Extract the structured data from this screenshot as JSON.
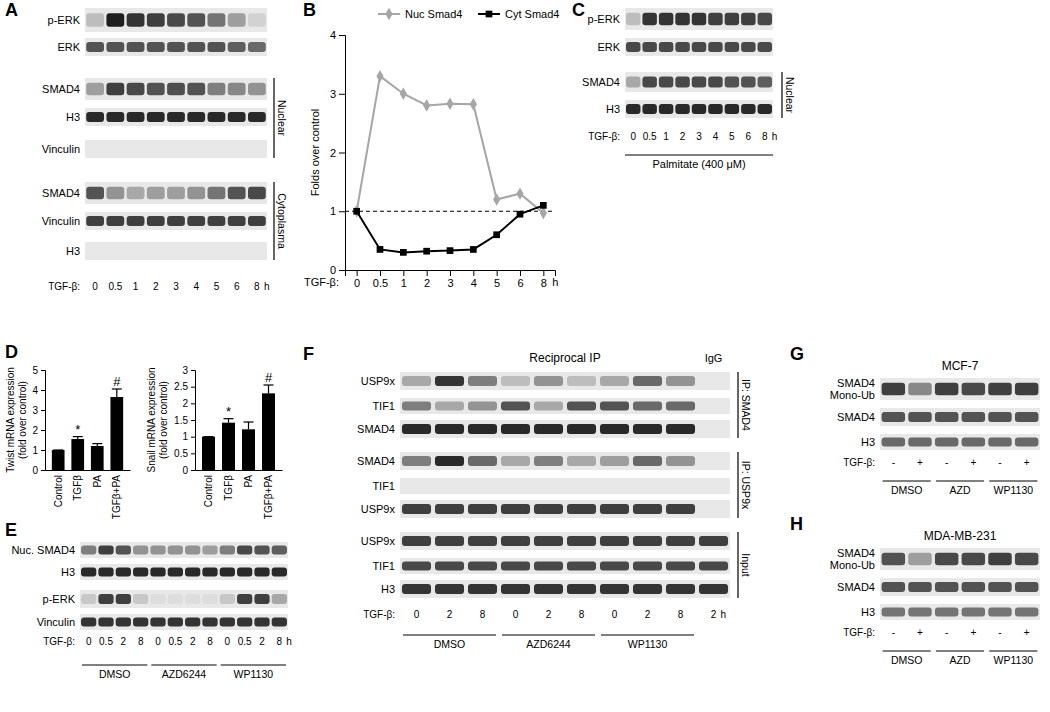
{
  "chart_data": [
    {
      "type": "line",
      "panel": "B",
      "ylabel": "Folds over control",
      "xlabel": "TGF-β:",
      "x_unit": "h",
      "categories": [
        "0",
        "0.5",
        "1",
        "2",
        "3",
        "4",
        "5",
        "6",
        "8"
      ],
      "series": [
        {
          "name": "Nuc Smad4",
          "color": "#a6a6a6",
          "marker": "diamond",
          "values": [
            1,
            3.3,
            3.0,
            2.8,
            2.83,
            2.82,
            1.2,
            1.3,
            0.97
          ]
        },
        {
          "name": "Cyt Smad4",
          "color": "#000000",
          "marker": "square",
          "values": [
            1,
            0.35,
            0.3,
            0.32,
            0.33,
            0.35,
            0.6,
            0.95,
            1.1
          ]
        }
      ],
      "reference_line": 1,
      "ylim": [
        0,
        4
      ],
      "yticks": [
        0,
        1,
        2,
        3,
        4
      ],
      "legend": "top"
    },
    {
      "type": "bar",
      "panel": "D",
      "ylabel": [
        "Twist mRNA expression",
        "(fold over control)"
      ],
      "categories": [
        "Control",
        "TGFβ",
        "PA",
        "TGFβ+PA"
      ],
      "values": [
        1,
        1.55,
        1.2,
        3.65
      ],
      "errors": [
        0,
        0.12,
        0.12,
        0.4
      ],
      "color": "#000000",
      "ylim": [
        0,
        5
      ],
      "yticks": [
        0,
        1,
        2,
        3,
        4,
        5
      ],
      "annotations": [
        {
          "category": "TGFβ",
          "text": "*"
        },
        {
          "category": "TGFβ+PA",
          "text": "#"
        }
      ]
    },
    {
      "type": "bar",
      "ylabel": [
        "Snail mRNA expression",
        "(fold over control)"
      ],
      "categories": [
        "Control",
        "TGFβ",
        "PA",
        "TGFβ+PA"
      ],
      "values": [
        1,
        1.42,
        1.22,
        2.3
      ],
      "errors": [
        0,
        0.12,
        0.22,
        0.25
      ],
      "color": "#000000",
      "ylim": [
        0,
        3
      ],
      "yticks": [
        0,
        0.5,
        1,
        1.5,
        2,
        2.5,
        3
      ],
      "annotations": [
        {
          "category": "TGFβ",
          "text": "*"
        },
        {
          "category": "TGFβ+PA",
          "text": "#"
        }
      ]
    }
  ],
  "blots": [
    {
      "panel": "A",
      "lane_prefix": "TGF-β:",
      "lanes": [
        "0",
        "0.5",
        "1",
        "2",
        "3",
        "4",
        "5",
        "6",
        "8"
      ],
      "lane_unit": "h",
      "rows": [
        {
          "name": "p-ERK",
          "bands": [
            0.2,
            0.95,
            0.85,
            0.8,
            0.75,
            0.7,
            0.55,
            0.35,
            0.1
          ]
        },
        {
          "name": "ERK",
          "bands": [
            0.7,
            0.7,
            0.7,
            0.7,
            0.7,
            0.7,
            0.7,
            0.65,
            0.6
          ]
        },
        {
          "name": "SMAD4",
          "bands": [
            0.35,
            0.8,
            0.75,
            0.7,
            0.72,
            0.7,
            0.5,
            0.45,
            0.4
          ]
        },
        {
          "name": "H3",
          "bands": [
            0.9,
            0.9,
            0.9,
            0.9,
            0.9,
            0.9,
            0.9,
            0.9,
            0.9
          ]
        },
        {
          "name": "Vinculin",
          "bands": [
            0,
            0,
            0,
            0,
            0,
            0,
            0,
            0,
            0
          ]
        },
        {
          "name": "SMAD4",
          "bands": [
            0.7,
            0.4,
            0.3,
            0.35,
            0.35,
            0.4,
            0.55,
            0.7,
            0.75
          ]
        },
        {
          "name": "Vinculin",
          "bands": [
            0.8,
            0.8,
            0.8,
            0.8,
            0.8,
            0.8,
            0.8,
            0.8,
            0.8
          ]
        },
        {
          "name": "H3",
          "bands": [
            0,
            0,
            0,
            0,
            0,
            0,
            0,
            0,
            0
          ]
        }
      ],
      "fractions": [
        {
          "name": "Nuclear",
          "from": 2,
          "to": 4
        },
        {
          "name": "Cytoplasma",
          "from": 5,
          "to": 7
        }
      ]
    },
    {
      "panel": "C",
      "lane_prefix": "TGF-β:",
      "lanes": [
        "0",
        "0.5",
        "1",
        "2",
        "3",
        "4",
        "5",
        "6",
        "8"
      ],
      "lane_unit": "h",
      "treatment": "Palmitate (400 μM)",
      "rows": [
        {
          "name": "p-ERK",
          "bands": [
            0.2,
            0.85,
            0.85,
            0.85,
            0.85,
            0.8,
            0.8,
            0.8,
            0.75
          ]
        },
        {
          "name": "ERK",
          "bands": [
            0.75,
            0.75,
            0.75,
            0.75,
            0.75,
            0.75,
            0.75,
            0.75,
            0.75
          ]
        },
        {
          "name": "SMAD4",
          "bands": [
            0.3,
            0.75,
            0.75,
            0.75,
            0.75,
            0.75,
            0.7,
            0.7,
            0.65
          ]
        },
        {
          "name": "H3",
          "bands": [
            0.9,
            0.9,
            0.9,
            0.9,
            0.9,
            0.9,
            0.9,
            0.9,
            0.9
          ]
        }
      ],
      "fractions": [
        {
          "name": "Nuclear",
          "from": 2,
          "to": 3
        }
      ]
    },
    {
      "panel": "E",
      "lane_prefix": "TGF-β:",
      "lanes": [
        "0",
        "0.5",
        "2",
        "8",
        "0",
        "0.5",
        "2",
        "8",
        "0",
        "0.5",
        "2",
        "8"
      ],
      "lane_unit": "h",
      "groups": [
        {
          "name": "DMSO",
          "lanes": 4
        },
        {
          "name": "AZD6244",
          "lanes": 4
        },
        {
          "name": "WP1130",
          "lanes": 4
        }
      ],
      "rows": [
        {
          "name": "Nuc. SMAD4",
          "bands": [
            0.5,
            0.8,
            0.7,
            0.4,
            0.4,
            0.4,
            0.4,
            0.35,
            0.5,
            0.75,
            0.7,
            0.65
          ]
        },
        {
          "name": "H3",
          "bands": [
            0.9,
            0.9,
            0.9,
            0.9,
            0.9,
            0.9,
            0.9,
            0.9,
            0.9,
            0.9,
            0.9,
            0.9
          ]
        },
        {
          "name": "p-ERK",
          "bands": [
            0.15,
            0.8,
            0.8,
            0.15,
            0.05,
            0.05,
            0.05,
            0.05,
            0.15,
            0.8,
            0.8,
            0.3
          ]
        },
        {
          "name": "Vinculin",
          "bands": [
            0.85,
            0.85,
            0.85,
            0.85,
            0.85,
            0.85,
            0.85,
            0.85,
            0.85,
            0.85,
            0.85,
            0.85
          ]
        }
      ]
    },
    {
      "panel": "F",
      "title": "Reciprocal IP",
      "corner_label": "IgG",
      "lane_prefix": "TGF-β:",
      "lanes": [
        "0",
        "2",
        "8",
        "0",
        "2",
        "8",
        "0",
        "2",
        "8",
        "2"
      ],
      "lane_unit": "h",
      "groups": [
        {
          "name": "DMSO",
          "lanes": 3
        },
        {
          "name": "AZD6244",
          "lanes": 3
        },
        {
          "name": "WP1130",
          "lanes": 3
        }
      ],
      "rows": [
        {
          "name": "USP9x",
          "bands": [
            0.3,
            0.85,
            0.5,
            0.2,
            0.4,
            0.2,
            0.3,
            0.6,
            0.4,
            0
          ]
        },
        {
          "name": "TIF1",
          "bands": [
            0.5,
            0.3,
            0.4,
            0.7,
            0.3,
            0.7,
            0.7,
            0.6,
            0.6,
            0
          ]
        },
        {
          "name": "SMAD4",
          "bands": [
            0.9,
            0.9,
            0.9,
            0.9,
            0.9,
            0.9,
            0.9,
            0.9,
            0.9,
            0
          ]
        },
        {
          "name": "SMAD4",
          "bands": [
            0.5,
            0.9,
            0.6,
            0.3,
            0.5,
            0.3,
            0.35,
            0.6,
            0.4,
            0
          ]
        },
        {
          "name": "TIF1",
          "bands": [
            0,
            0,
            0,
            0,
            0,
            0,
            0,
            0,
            0,
            0
          ]
        },
        {
          "name": "USP9x",
          "bands": [
            0.8,
            0.8,
            0.8,
            0.8,
            0.8,
            0.8,
            0.8,
            0.8,
            0.8,
            0
          ]
        },
        {
          "name": "USP9x",
          "bands": [
            0.8,
            0.8,
            0.8,
            0.8,
            0.8,
            0.8,
            0.8,
            0.8,
            0.8,
            0.8
          ]
        },
        {
          "name": "TIF1",
          "bands": [
            0.75,
            0.75,
            0.75,
            0.75,
            0.75,
            0.75,
            0.75,
            0.75,
            0.75,
            0.75
          ]
        },
        {
          "name": "H3",
          "bands": [
            0.85,
            0.85,
            0.85,
            0.85,
            0.85,
            0.85,
            0.85,
            0.85,
            0.85,
            0.85
          ]
        }
      ],
      "fractions": [
        {
          "name": "IP: SMAD4",
          "from": 0,
          "to": 2
        },
        {
          "name": "IP: USP9x",
          "from": 3,
          "to": 5
        },
        {
          "name": "Input",
          "from": 6,
          "to": 8
        }
      ]
    },
    {
      "panel": "G",
      "title": "MCF-7",
      "lane_prefix": "TGF-β:",
      "lanes": [
        "-",
        "+",
        "-",
        "+",
        "-",
        "+"
      ],
      "groups": [
        {
          "name": "DMSO",
          "lanes": 2
        },
        {
          "name": "AZD",
          "lanes": 2
        },
        {
          "name": "WP1130",
          "lanes": 2
        }
      ],
      "rows": [
        {
          "name": [
            "SMAD4",
            "Mono-Ub"
          ],
          "bands": [
            0.8,
            0.45,
            0.8,
            0.75,
            0.8,
            0.8
          ]
        },
        {
          "name": "SMAD4",
          "bands": [
            0.7,
            0.7,
            0.7,
            0.7,
            0.7,
            0.7
          ]
        },
        {
          "name": "H3",
          "bands": [
            0.6,
            0.6,
            0.6,
            0.6,
            0.6,
            0.6
          ]
        }
      ]
    },
    {
      "panel": "H",
      "title": "MDA-MB-231",
      "lane_prefix": "TGF-β:",
      "lanes": [
        "-",
        "+",
        "-",
        "+",
        "-",
        "+"
      ],
      "groups": [
        {
          "name": "DMSO",
          "lanes": 2
        },
        {
          "name": "AZD",
          "lanes": 2
        },
        {
          "name": "WP1130",
          "lanes": 2
        }
      ],
      "rows": [
        {
          "name": [
            "SMAD4",
            "Mono-Ub"
          ],
          "bands": [
            0.7,
            0.35,
            0.75,
            0.75,
            0.8,
            0.75
          ]
        },
        {
          "name": "SMAD4",
          "bands": [
            0.7,
            0.7,
            0.7,
            0.7,
            0.7,
            0.7
          ]
        },
        {
          "name": "H3",
          "bands": [
            0.55,
            0.55,
            0.55,
            0.55,
            0.55,
            0.55
          ]
        }
      ]
    }
  ]
}
